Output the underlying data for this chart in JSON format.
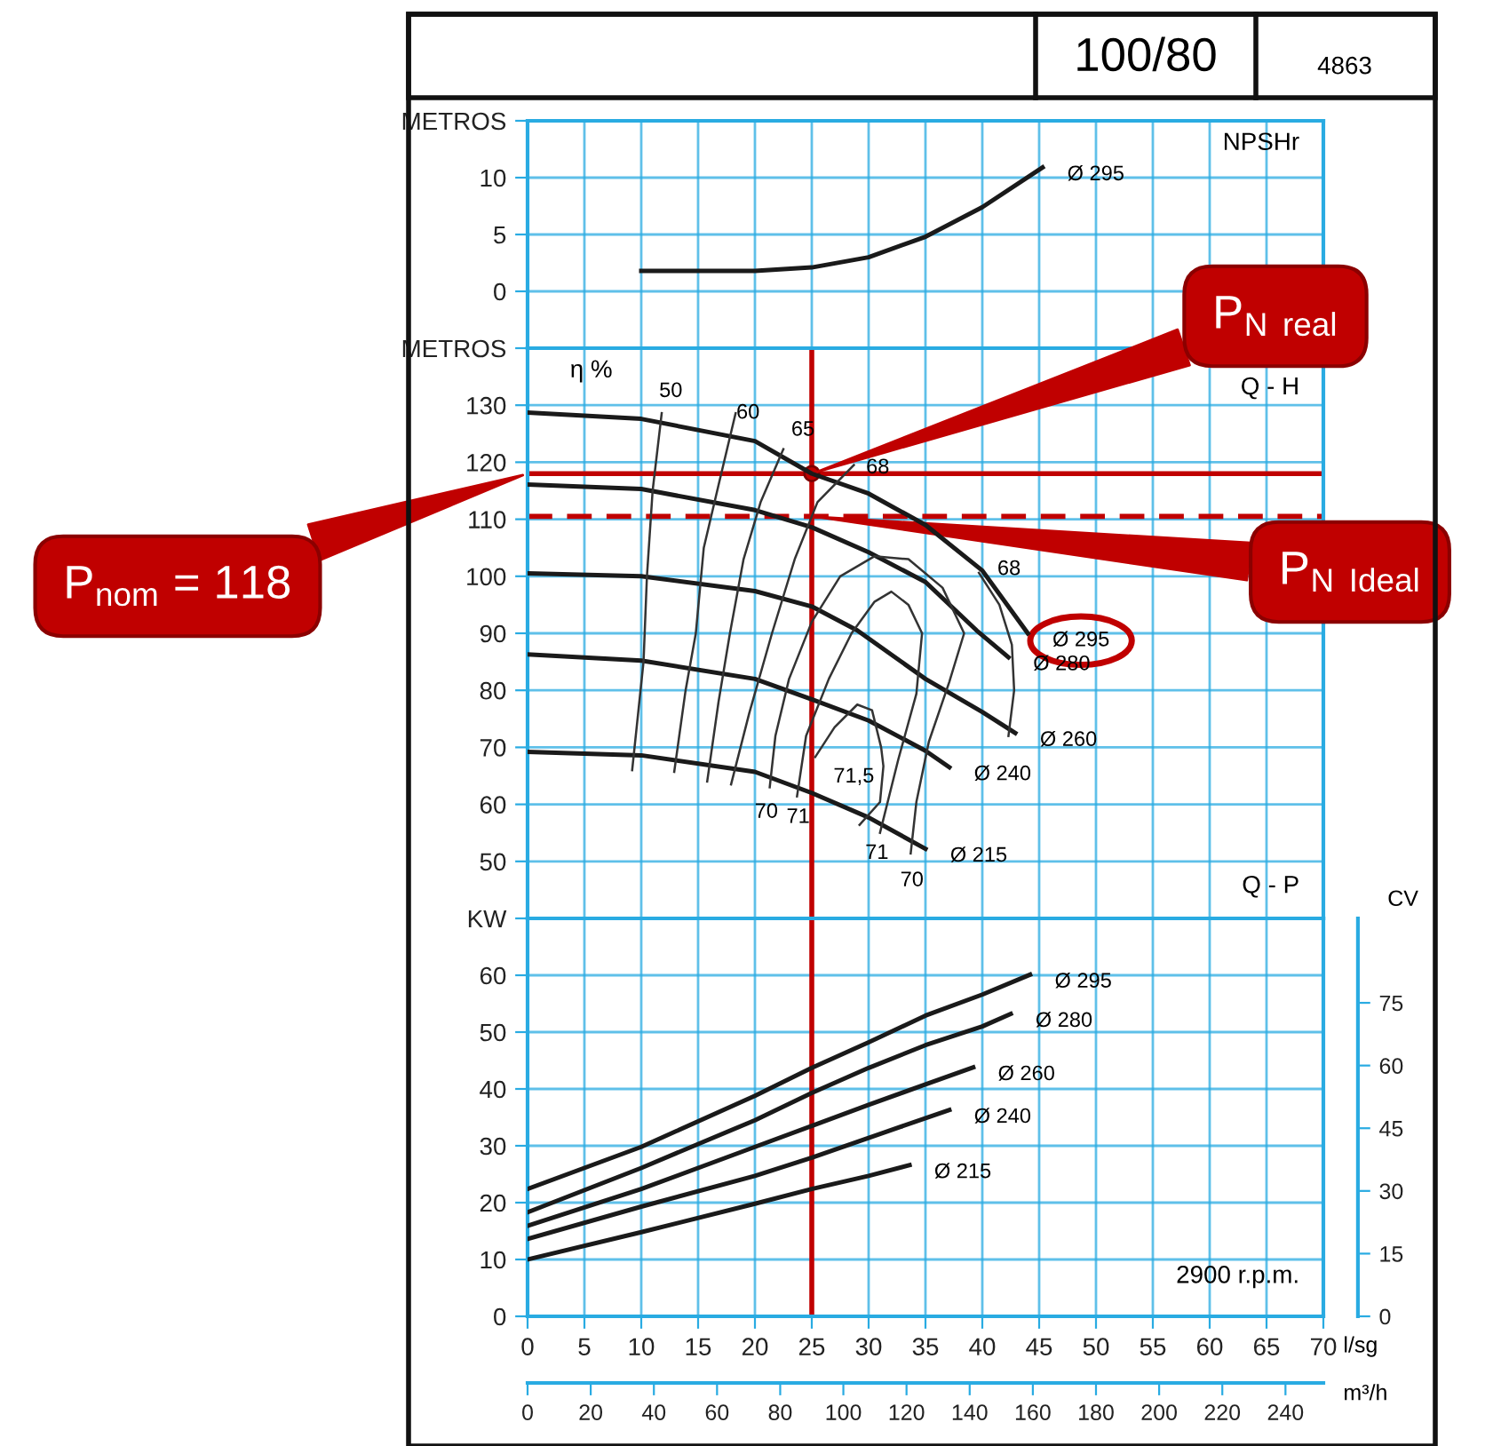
{
  "chart_data": [
    {
      "type": "line",
      "title": "100/80",
      "subtitle": "4863",
      "xlim": [
        0,
        70
      ],
      "xticks": [
        0,
        5,
        10,
        15,
        20,
        25,
        30,
        35,
        40,
        45,
        50,
        55,
        60,
        65,
        70
      ],
      "ylim": [
        -5,
        15
      ],
      "yticks": [
        0,
        5,
        10,
        {
          "value": 15,
          "label": "METROS"
        }
      ],
      "tick_labels": "y",
      "grid": true,
      "annotations": [
        "NPSHr"
      ],
      "series": [
        {
          "name": "Ø 295",
          "color": "#1a1a1a",
          "x": [
            10,
            20,
            25,
            30,
            35,
            40,
            45.3
          ],
          "values": [
            1.8,
            1.8,
            2.1,
            3.0,
            4.8,
            7.4,
            10.9
          ]
        }
      ]
    },
    {
      "type": "line",
      "xlim": [
        0,
        70
      ],
      "xticks": [
        0,
        5,
        10,
        15,
        20,
        25,
        30,
        35,
        40,
        45,
        50,
        55,
        60,
        65,
        70
      ],
      "ylim": [
        40,
        140
      ],
      "yticks": [
        50,
        60,
        70,
        80,
        90,
        100,
        110,
        120,
        130,
        {
          "value": 140,
          "label": "METROS"
        }
      ],
      "tick_labels": "y",
      "grid": true,
      "annotations": [
        "Q - H",
        "η %",
        "50",
        "60",
        "65",
        "68",
        "68",
        "70",
        "71",
        "71,5",
        "71",
        "70"
      ],
      "ref_lines": [
        {
          "axis": "y",
          "value": 118,
          "label": "P$_{nom}$ = 118",
          "color": "#c00000"
        },
        {
          "axis": "y",
          "value": 110.5,
          "label": "P$_{N Ideal}$",
          "color": "#c00000",
          "line_style": "dashed"
        },
        {
          "axis": "x",
          "value": 25,
          "label": "P$_{N real}$",
          "color": "#c00000"
        }
      ],
      "series": [
        {
          "name": "Ø 295",
          "color": "#1a1a1a",
          "x": [
            0,
            10,
            20,
            25,
            30,
            35,
            40,
            44
          ],
          "values": [
            128.7,
            127.6,
            123.7,
            118,
            114.5,
            109,
            101,
            90
          ]
        },
        {
          "name": "Ø 280",
          "color": "#1a1a1a",
          "x": [
            0,
            10,
            20,
            25,
            30,
            35,
            39.5,
            42.3
          ],
          "values": [
            116.1,
            115.3,
            111.6,
            108.6,
            104.2,
            99,
            90.5,
            85.8
          ]
        },
        {
          "name": "Ø 260",
          "color": "#1a1a1a",
          "x": [
            0,
            10,
            20,
            25,
            29,
            35,
            40,
            42.9
          ],
          "values": [
            100.5,
            100,
            97.4,
            94.7,
            90.5,
            82,
            76.2,
            72.5
          ]
        },
        {
          "name": "Ø 240",
          "color": "#1a1a1a",
          "x": [
            0,
            10,
            20,
            25,
            30,
            35,
            37.1
          ],
          "values": [
            86.3,
            85.2,
            82,
            78.4,
            74.7,
            69.4,
            66.5
          ]
        },
        {
          "name": "Ø 215",
          "color": "#1a1a1a",
          "x": [
            0,
            10,
            20,
            25,
            30,
            35
          ],
          "values": [
            69.2,
            68.6,
            65.7,
            62,
            57.7,
            52.2
          ]
        },
        {
          "color": "#333333",
          "x": [
            11.8,
            11,
            10.5,
            10.2,
            9.2
          ],
          "values": [
            128.6,
            115,
            100,
            85,
            66
          ]
        },
        {
          "color": "#333333",
          "x": [
            18.3,
            16.8,
            15.5,
            14.8,
            13.9,
            12.9
          ],
          "values": [
            128.6,
            116,
            105,
            90,
            80,
            65.7
          ]
        },
        {
          "color": "#333333",
          "x": [
            22.5,
            20.5,
            19,
            17.8,
            16.8,
            15.8
          ],
          "values": [
            122.3,
            113,
            103,
            90,
            78,
            64
          ]
        },
        {
          "color": "#333333",
          "x": [
            28.7,
            25.5,
            23.5,
            21.5,
            19.5,
            17.9
          ],
          "values": [
            119.5,
            113,
            103,
            90,
            76,
            63.5
          ]
        },
        {
          "color": "#333333",
          "x": [
            39.7,
            41.5,
            42.6,
            42.8,
            42.3
          ],
          "values": [
            100.6,
            95,
            88,
            80,
            72
          ]
        },
        {
          "color": "#333333",
          "x": [
            21.3,
            21.8,
            23,
            25,
            27.5,
            30.5,
            33.5,
            36.5,
            38.4,
            37.1,
            35.3,
            34.2,
            33.7
          ],
          "values": [
            63,
            72,
            82,
            92,
            100,
            103.5,
            103,
            98,
            90,
            81.5,
            71,
            60.4,
            51.4
          ]
        },
        {
          "color": "#333333",
          "x": [
            23.7,
            24.5,
            26.5,
            28.5,
            30.5,
            32,
            33.5,
            34.7,
            34.2,
            32.6,
            31
          ],
          "values": [
            61.4,
            72,
            82,
            90,
            95.5,
            97.3,
            95,
            90,
            79.4,
            67.8,
            55
          ]
        },
        {
          "color": "#333333",
          "x": [
            25.3,
            27,
            29,
            30.3,
            31.1,
            31.3,
            31,
            29.2
          ],
          "values": [
            68.3,
            73.5,
            77.5,
            76.5,
            70,
            66.7,
            60.4,
            56.4
          ]
        }
      ]
    },
    {
      "type": "line",
      "xlabel": "l/sg",
      "x2label": "m³/h",
      "y2label": "CV",
      "xlim": [
        0,
        70
      ],
      "xticks": [
        0,
        5,
        10,
        15,
        20,
        25,
        30,
        35,
        40,
        45,
        50,
        55,
        60,
        65,
        70
      ],
      "x2lim": [
        0,
        252
      ],
      "x2ticks": [
        0,
        20,
        40,
        60,
        80,
        100,
        120,
        140,
        160,
        180,
        200,
        220,
        240
      ],
      "ylim": [
        0,
        70
      ],
      "yticks": [
        0,
        10,
        20,
        30,
        40,
        50,
        60,
        {
          "value": 70,
          "label": "KW"
        }
      ],
      "y2lim": [
        0,
        95.2
      ],
      "y2ticks": [
        0,
        15,
        30,
        45,
        60,
        75
      ],
      "grid": true,
      "annotations": [
        "Q - P",
        "2900 r.p.m."
      ],
      "ref_lines": [
        {
          "axis": "x",
          "value": 25,
          "color": "#c00000"
        }
      ],
      "series": [
        {
          "name": "Ø 295",
          "color": "#1a1a1a",
          "x": [
            0,
            10,
            20,
            25,
            30,
            35,
            40,
            44.2
          ],
          "values": [
            22.4,
            29.8,
            38.8,
            43.7,
            48.2,
            52.9,
            56.6,
            60.1
          ]
        },
        {
          "name": "Ø 280",
          "color": "#1a1a1a",
          "x": [
            0,
            10,
            20,
            25,
            30,
            35,
            40,
            42.5
          ],
          "values": [
            18.3,
            26.1,
            34.5,
            39.3,
            43.7,
            47.7,
            51,
            53.2
          ]
        },
        {
          "name": "Ø 260",
          "color": "#1a1a1a",
          "x": [
            0,
            10,
            20,
            25,
            30,
            35,
            39.2
          ],
          "values": [
            15.9,
            22.4,
            29.8,
            33.5,
            37.2,
            40.8,
            43.8
          ]
        },
        {
          "name": "Ø 240",
          "color": "#1a1a1a",
          "x": [
            0,
            10,
            20,
            25,
            30,
            37.1
          ],
          "values": [
            13.6,
            19.3,
            24.7,
            27.9,
            31.4,
            36.3
          ]
        },
        {
          "name": "Ø 215",
          "color": "#1a1a1a",
          "x": [
            0,
            10,
            20,
            25,
            30,
            33.6
          ],
          "values": [
            10,
            14.8,
            19.8,
            22.4,
            24.7,
            26.6
          ]
        }
      ]
    }
  ]
}
